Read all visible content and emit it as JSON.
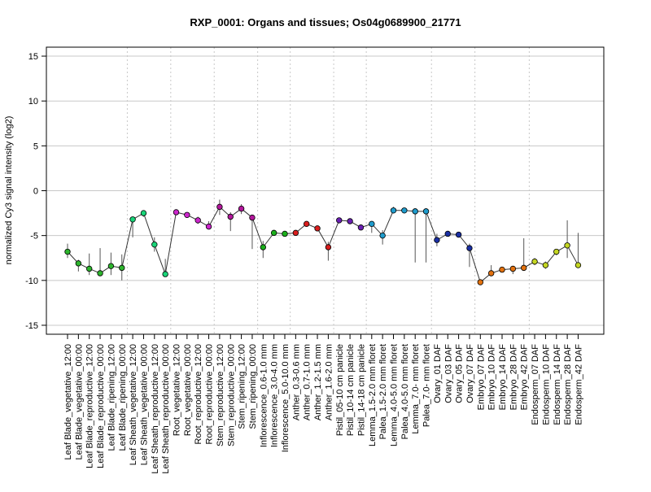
{
  "chart_data": {
    "type": "line",
    "title": "RXP_0001: Organs and tissues; Os04g0689900_21771",
    "xlabel": "",
    "ylabel": "normalized Cy3 signal intensity (log2)",
    "ylim": [
      -16,
      16
    ],
    "yticks": [
      -15,
      -10,
      -5,
      0,
      5,
      10,
      15
    ],
    "grid": true,
    "categories": [
      "Leaf Blade_vegetative_12:00",
      "Leaf Blade_vegetative_00:00",
      "Leaf Blade_reproductive_12:00",
      "Leaf Blade_reproductive_00:00",
      "Leaf Blade_ripening_12:00",
      "Leaf Blade_ripening_00:00",
      "Leaf Sheath_vegetative_12:00",
      "Leaf Sheath_vegetative_00:00",
      "Leaf Sheath_reproductive_12:00",
      "Leaf Sheath_reproductive_00:00",
      "Root_vegetative_12:00",
      "Root_vegetative_00:00",
      "Root_reproductive_12:00",
      "Root_reproductive_00:00",
      "Stem_reproductive_12:00",
      "Stem_reproductive_00:00",
      "Stem_ripening_12:00",
      "Stem_ripening_00:00",
      "Inflorescence_0.6-1.0 mm",
      "Inflorescence_3.0-4.0 mm",
      "Inflorescence_5.0-10.0 mm",
      "Anther_0.3-0.6 mm",
      "Anther_0.7-1.0 mm",
      "Anther_1.2-1.5 mm",
      "Anther_1.6-2.0 mm",
      "Pistil_05-10 cm panicle",
      "Pistil_10-14 cm panicle",
      "Pistil_14-18 cm panicle",
      "Lemma_1.5-2.0 mm floret",
      "Palea_1.5-2.0 mm floret",
      "Lemma_4.0-5.0 mm floret",
      "Palea_4.0-5.0 mm floret",
      "Lemma_7.0- mm floret",
      "Palea_7.0- mm floret",
      "Ovary_01 DAF",
      "Ovary_03 DAF",
      "Ovary_05 DAF",
      "Ovary_07 DAF",
      "Embryo_07 DAF",
      "Embryo_10 DAF",
      "Embryo_14 DAF",
      "Embryo_28 DAF",
      "Embryo_42 DAF",
      "Endosperm_07 DAF",
      "Endosperm_10 DAF",
      "Endosperm_14 DAF",
      "Endosperm_28 DAF",
      "Endosperm_42 DAF"
    ],
    "values": [
      -6.8,
      -8.1,
      -8.7,
      -9.2,
      -8.4,
      -8.6,
      -3.2,
      -2.5,
      -6.0,
      -9.3,
      -2.4,
      -2.7,
      -3.3,
      -4.0,
      -1.8,
      -2.9,
      -2.0,
      -3.0,
      -6.3,
      -4.7,
      -4.8,
      -4.7,
      -3.7,
      -4.2,
      -6.3,
      -3.3,
      -3.4,
      -4.1,
      -3.7,
      -5.0,
      -2.2,
      -2.2,
      -2.3,
      -2.3,
      -5.5,
      -4.8,
      -4.9,
      -6.4,
      -10.2,
      -9.2,
      -8.8,
      -8.7,
      -8.6,
      -7.9,
      -8.3,
      -6.8,
      -6.1,
      -8.3
    ],
    "error_low": [
      -7.5,
      -9.0,
      -9.4,
      -9.5,
      -9.4,
      -10.0,
      -5.2,
      -2.9,
      -6.8,
      -9.5,
      -2.4,
      -2.8,
      -3.7,
      -4.3,
      -2.7,
      -4.5,
      -2.6,
      -6.5,
      -7.5,
      -4.9,
      -4.9,
      -4.9,
      -3.9,
      -4.3,
      -7.8,
      -3.6,
      -3.6,
      -4.3,
      -4.7,
      -6.0,
      -2.5,
      -2.4,
      -8.0,
      -8.0,
      -6.2,
      -5.0,
      -5.0,
      -8.5,
      -10.3,
      -9.5,
      -9.1,
      -9.3,
      -8.9,
      -8.3,
      -8.7,
      -7.2,
      -7.5,
      -8.5
    ],
    "error_high": [
      -5.9,
      -7.7,
      -7.0,
      -6.4,
      -6.9,
      -7.1,
      -2.9,
      -2.2,
      -5.2,
      -7.6,
      -2.2,
      -2.5,
      -2.9,
      -3.4,
      -1.0,
      -2.4,
      -1.5,
      -2.7,
      -5.6,
      -4.6,
      -4.6,
      -4.4,
      -3.5,
      -4.1,
      -5.7,
      -3.1,
      -3.2,
      -3.9,
      -3.5,
      -4.4,
      -1.8,
      -2.1,
      -2.2,
      -2.2,
      -4.8,
      -4.6,
      -4.7,
      -5.9,
      -10.0,
      -8.3,
      -8.5,
      -8.5,
      -5.3,
      -7.5,
      -7.9,
      -6.5,
      -3.3,
      -4.7
    ],
    "point_colors": [
      "#2db52d",
      "#2db52d",
      "#2db52d",
      "#2db52d",
      "#2db52d",
      "#2db52d",
      "#19d478",
      "#19d478",
      "#19d478",
      "#19d478",
      "#cc26cc",
      "#cc26cc",
      "#cc26cc",
      "#cc26cc",
      "#b3179c",
      "#b3179c",
      "#b3179c",
      "#b3179c",
      "#1bb01b",
      "#1bb01b",
      "#1bb01b",
      "#d91d1d",
      "#d91d1d",
      "#d91d1d",
      "#d91d1d",
      "#6a1fb3",
      "#6a1fb3",
      "#6a1fb3",
      "#1e9bcc",
      "#1e9bcc",
      "#1e9bcc",
      "#1e9bcc",
      "#1e9bcc",
      "#1e9bcc",
      "#1a2fa3",
      "#1a2fa3",
      "#1a2fa3",
      "#1a2fa3",
      "#e3720f",
      "#e3720f",
      "#e3720f",
      "#e3720f",
      "#e3720f",
      "#c4d622",
      "#c4d622",
      "#c4d622",
      "#c4d622",
      "#c4d622"
    ],
    "group_separators_after_index": [
      5,
      9,
      13,
      17,
      20,
      24,
      27,
      33,
      37,
      42
    ]
  }
}
